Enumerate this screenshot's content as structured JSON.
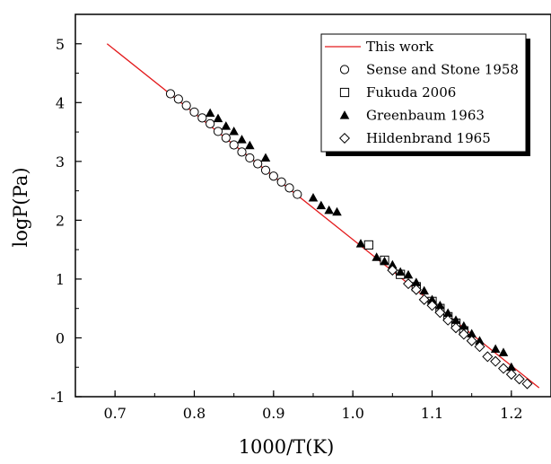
{
  "chart_data": {
    "type": "scatter",
    "title": "",
    "xlabel": "1000/T(K)",
    "ylabel": "logP(Pa)",
    "xlim": [
      0.65,
      1.25
    ],
    "ylim": [
      -1.0,
      5.5
    ],
    "xticks": [
      "0.7",
      "0.8",
      "0.9",
      "1.0",
      "1.1",
      "1.2"
    ],
    "yticks": [
      "-1",
      "0",
      "1",
      "2",
      "3",
      "4",
      "5"
    ],
    "grid": false,
    "legend_position": "top-right",
    "colors": {
      "line": "#e31a1c",
      "marker": "#000000"
    },
    "series": [
      {
        "name": "This work",
        "kind": "line",
        "x": [
          0.69,
          1.235
        ],
        "y": [
          5.0,
          -0.85
        ]
      },
      {
        "name": "Sense and Stone 1958",
        "kind": "scatter",
        "marker": "circle-open",
        "x": [
          0.77,
          0.78,
          0.79,
          0.8,
          0.81,
          0.82,
          0.83,
          0.84,
          0.85,
          0.86,
          0.87,
          0.88,
          0.89,
          0.9,
          0.91,
          0.92,
          0.93
        ],
        "y": [
          4.15,
          4.06,
          3.95,
          3.84,
          3.74,
          3.64,
          3.51,
          3.4,
          3.28,
          3.16,
          3.06,
          2.96,
          2.85,
          2.75,
          2.65,
          2.55,
          2.44
        ]
      },
      {
        "name": "Fukuda 2006",
        "kind": "scatter",
        "marker": "square-open",
        "x": [
          1.02,
          1.04,
          1.06,
          1.08,
          1.1,
          1.11,
          1.12,
          1.13,
          1.14
        ],
        "y": [
          1.58,
          1.32,
          1.08,
          0.87,
          0.62,
          0.5,
          0.36,
          0.25,
          0.12
        ]
      },
      {
        "name": "Greenbaum 1963",
        "kind": "scatter",
        "marker": "triangle-filled",
        "x": [
          0.82,
          0.83,
          0.84,
          0.85,
          0.86,
          0.87,
          0.89,
          0.95,
          0.96,
          0.97,
          0.98,
          1.01,
          1.03,
          1.04,
          1.05,
          1.06,
          1.07,
          1.08,
          1.09,
          1.1,
          1.11,
          1.12,
          1.13,
          1.14,
          1.15,
          1.16,
          1.18,
          1.19,
          1.2
        ],
        "y": [
          3.82,
          3.73,
          3.6,
          3.51,
          3.37,
          3.27,
          3.06,
          2.38,
          2.25,
          2.17,
          2.14,
          1.6,
          1.37,
          1.3,
          1.24,
          1.12,
          1.07,
          0.94,
          0.8,
          0.65,
          0.55,
          0.42,
          0.3,
          0.2,
          0.07,
          -0.05,
          -0.19,
          -0.25,
          -0.5
        ]
      },
      {
        "name": "Hildenbrand 1965",
        "kind": "scatter",
        "marker": "diamond-open",
        "x": [
          1.05,
          1.07,
          1.08,
          1.09,
          1.1,
          1.11,
          1.12,
          1.13,
          1.14,
          1.15,
          1.16,
          1.17,
          1.18,
          1.19,
          1.2,
          1.21,
          1.22
        ],
        "y": [
          1.15,
          0.92,
          0.82,
          0.65,
          0.55,
          0.43,
          0.3,
          0.17,
          0.06,
          -0.05,
          -0.15,
          -0.32,
          -0.4,
          -0.52,
          -0.62,
          -0.7,
          -0.78
        ]
      }
    ]
  }
}
